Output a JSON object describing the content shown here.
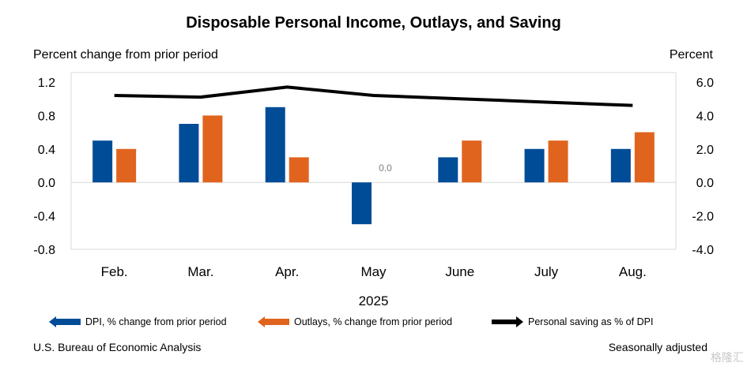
{
  "title": "Disposable Personal Income, Outlays, and Saving",
  "left_axis_label": "Percent change from prior period",
  "right_axis_label": "Percent",
  "x_axis_title": "2025",
  "source": "U.S. Bureau of Economic Analysis",
  "note": "Seasonally adjusted",
  "watermark": "格隆汇",
  "legend": [
    {
      "label": "DPI, % change from prior period",
      "color": "#004C97",
      "icon": "arrow-left"
    },
    {
      "label": "Outlays, % change from prior period",
      "color": "#E0641E",
      "icon": "arrow-left"
    },
    {
      "label": "Personal saving as % of DPI",
      "color": "#000000",
      "icon": "arrow-right"
    }
  ],
  "chart_data": {
    "type": "bar",
    "categories": [
      "Feb.",
      "Mar.",
      "Apr.",
      "May",
      "June",
      "July",
      "Aug."
    ],
    "series": [
      {
        "name": "DPI, % change from prior period",
        "values": [
          0.5,
          0.7,
          0.9,
          -0.5,
          0.3,
          0.4,
          0.4
        ],
        "color": "#004C97",
        "axis": "left"
      },
      {
        "name": "Outlays, % change from prior period",
        "values": [
          0.4,
          0.8,
          0.3,
          0.0,
          0.5,
          0.5,
          0.6
        ],
        "color": "#E0641E",
        "axis": "left"
      },
      {
        "name": "Personal saving as % of DPI",
        "type": "line",
        "values": [
          5.2,
          5.1,
          5.7,
          5.2,
          5.0,
          4.8,
          4.6
        ],
        "color": "#000000",
        "axis": "right"
      }
    ],
    "zero_value_label": "0.0",
    "left_axis": {
      "ticks": [
        "1.2",
        "0.8",
        "0.4",
        "0.0",
        "-0.4",
        "-0.8"
      ],
      "ylim": [
        -0.8,
        1.2
      ]
    },
    "right_axis": {
      "ticks": [
        "6.0",
        "4.0",
        "2.0",
        "0.0",
        "-2.0",
        "-4.0"
      ],
      "ylim": [
        -4.0,
        6.0
      ]
    },
    "grid": false,
    "legend_position": "bottom"
  }
}
